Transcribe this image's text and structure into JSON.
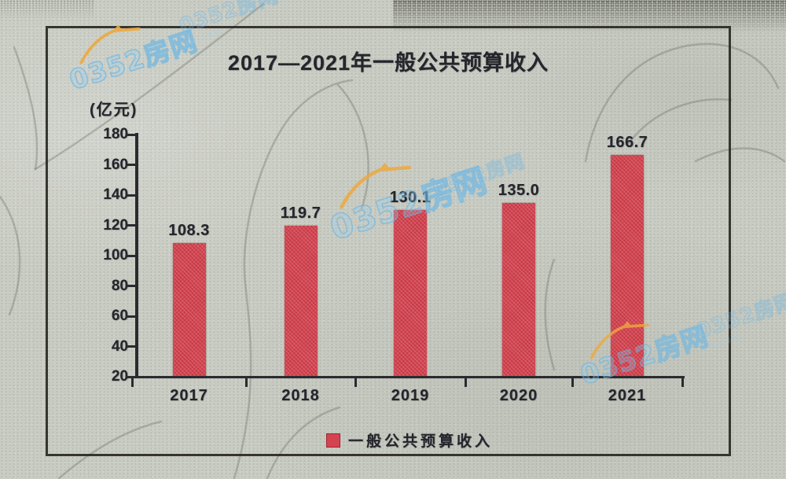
{
  "title": "2017—2021年一般公共预算收入",
  "unit_label": "(亿元)",
  "legend": {
    "label": "一般公共预算收入"
  },
  "watermark": {
    "text": "0352房网"
  },
  "colors": {
    "bar": "#d4434f",
    "ink": "#25252c",
    "watermark_blue": "#79bfe8",
    "watermark_orange": "#eda93f",
    "paper": "#c9ccc3"
  },
  "chart_data": {
    "type": "bar",
    "title": "2017—2021年一般公共预算收入",
    "unit": "亿元",
    "categories": [
      "2017",
      "2018",
      "2019",
      "2020",
      "2021"
    ],
    "values": [
      108.3,
      119.7,
      130.1,
      135.0,
      166.7
    ],
    "value_labels": [
      "108.3",
      "119.7",
      "130.1",
      "135.0",
      "166.7"
    ],
    "series_name": "一般公共预算收入",
    "ylabel": "(亿元)",
    "ylim": [
      20,
      180
    ],
    "yticks": [
      180,
      160,
      140,
      120,
      100,
      80,
      60,
      40,
      20
    ],
    "grid": false,
    "legend_position": "bottom"
  }
}
